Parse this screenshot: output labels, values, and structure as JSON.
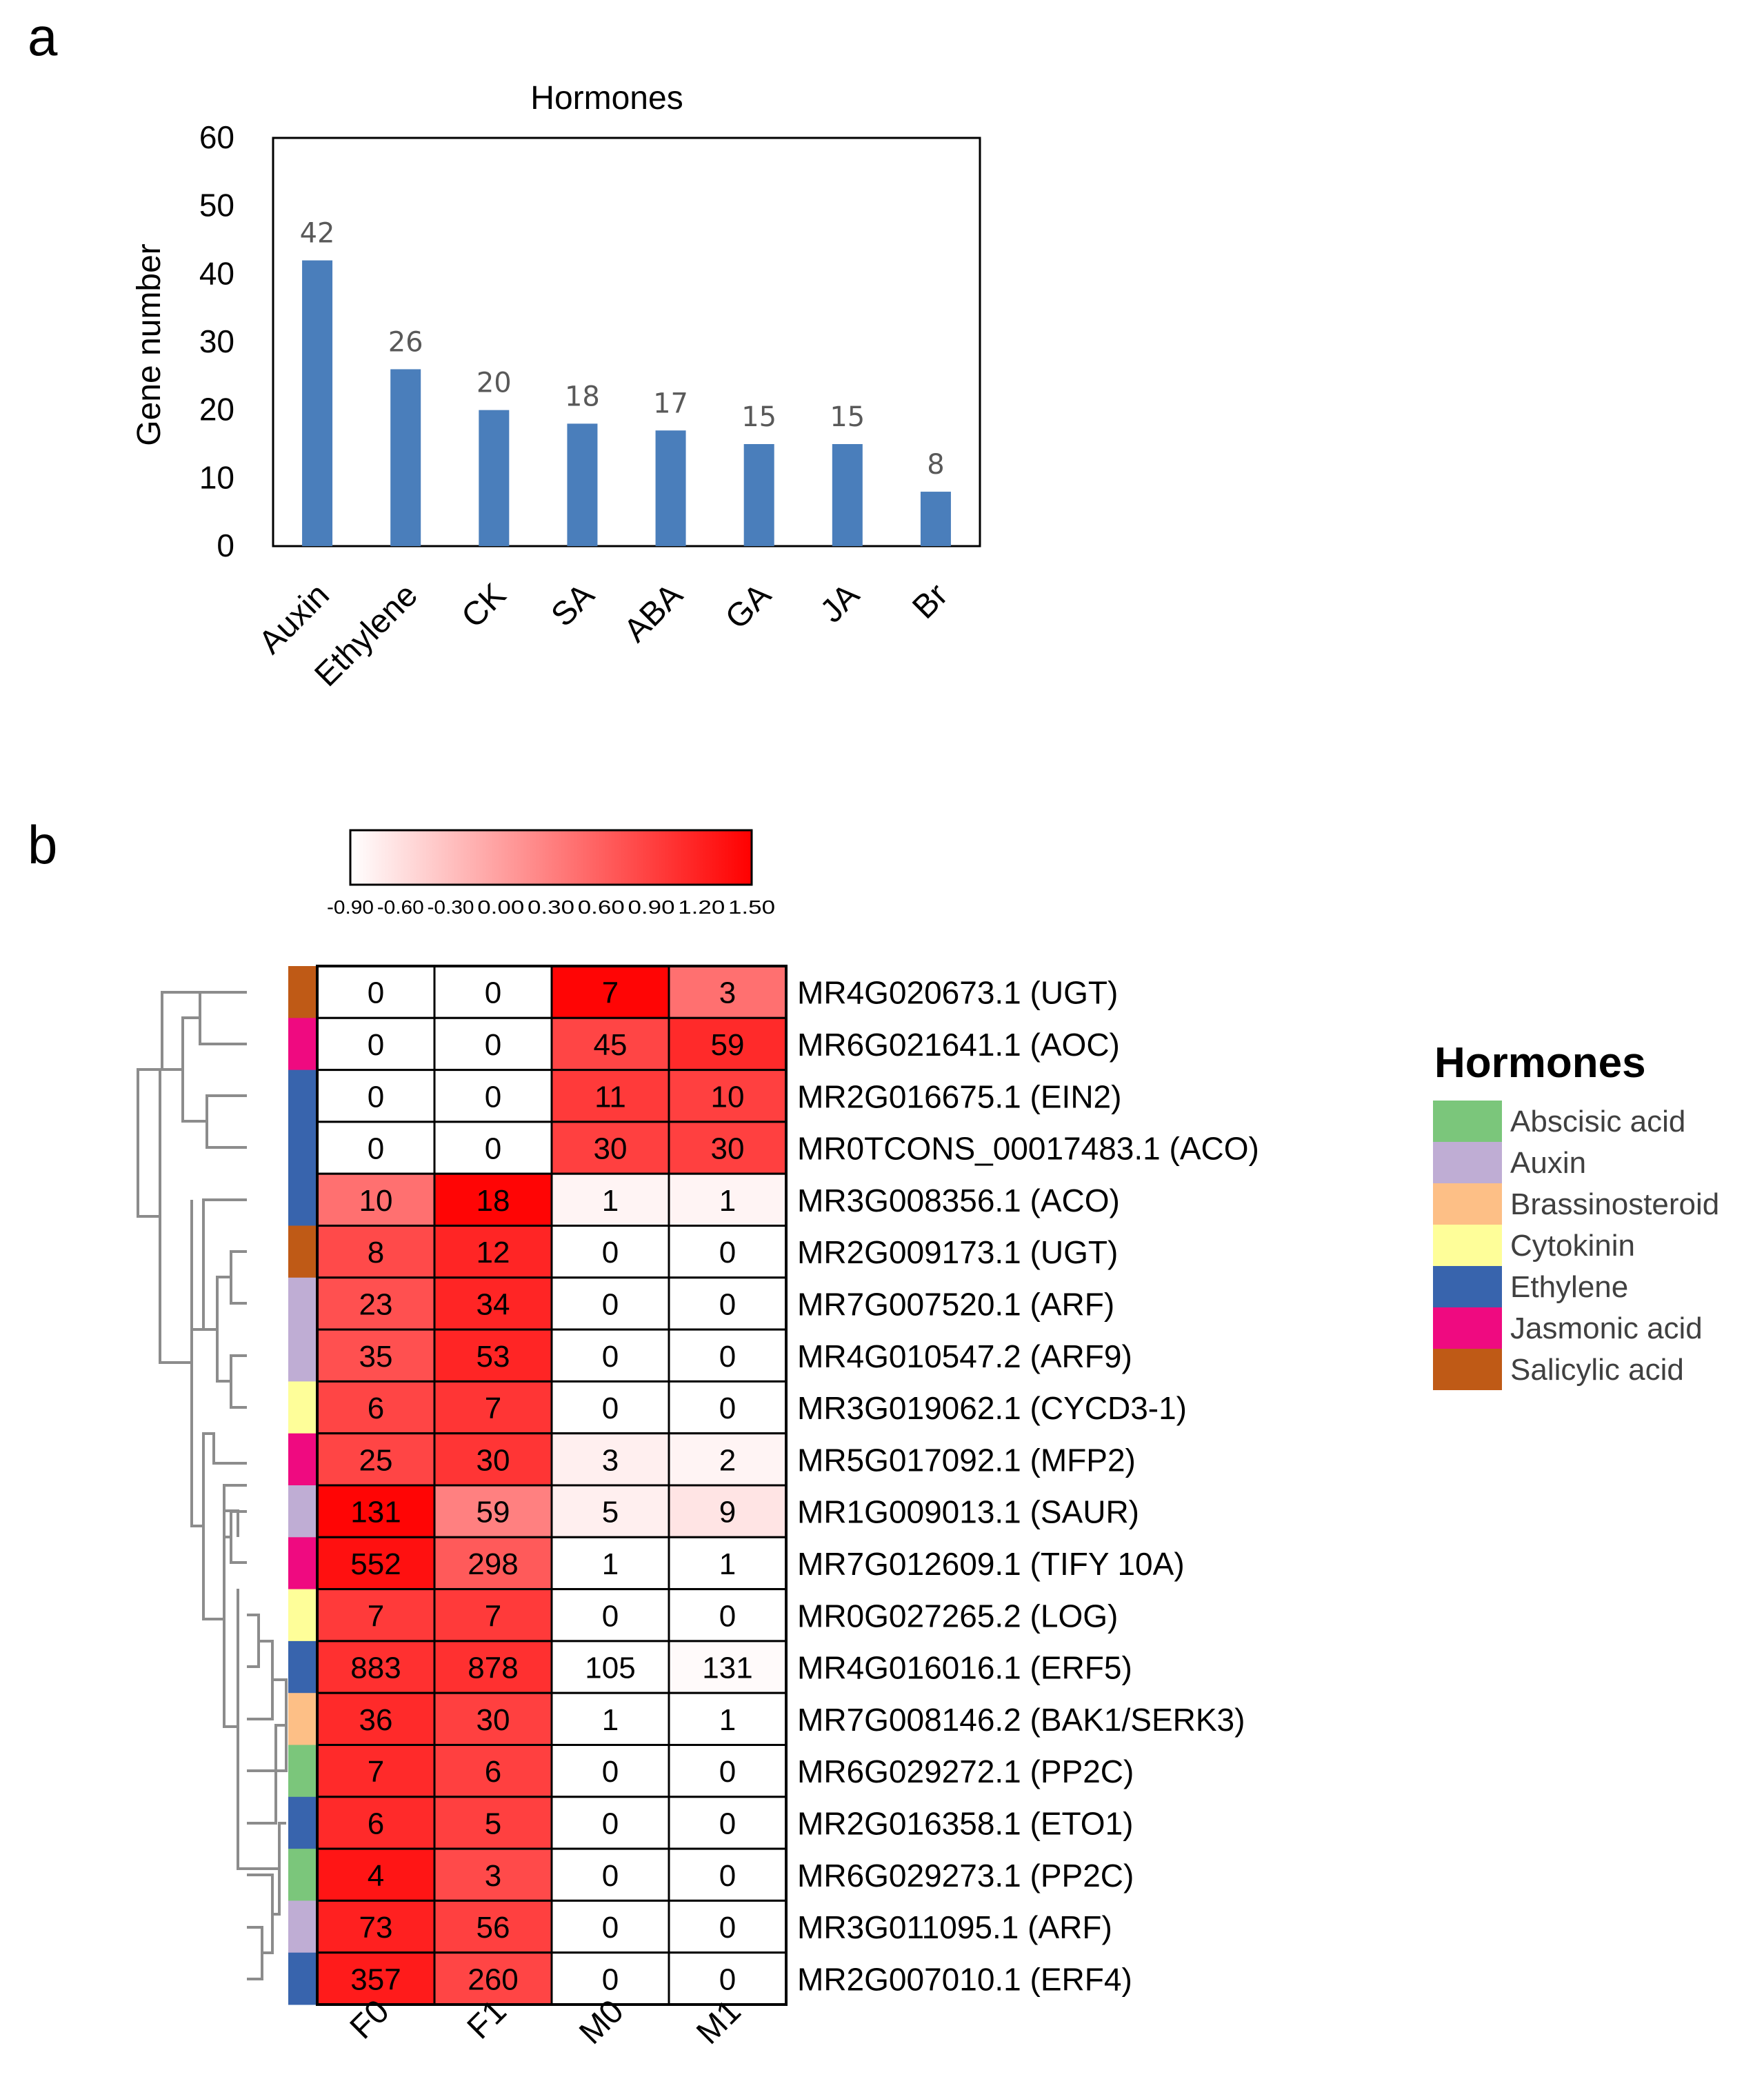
{
  "panels": {
    "a": "a",
    "b": "b"
  },
  "chart_data": [
    {
      "type": "bar",
      "title": "Hormones",
      "xlabel": "",
      "ylabel": "Gene number",
      "ylim": [
        0,
        60
      ],
      "yticks": [
        0,
        10,
        20,
        30,
        40,
        50,
        60
      ],
      "categories": [
        "Auxin",
        "Ethylene",
        "CK",
        "SA",
        "ABA",
        "GA",
        "JA",
        "Br"
      ],
      "values": [
        42,
        26,
        20,
        18,
        17,
        15,
        15,
        8
      ],
      "bar_color": "#4a7ebb",
      "grid": false
    },
    {
      "type": "heatmap",
      "columns": [
        "F0",
        "F1",
        "M0",
        "M1"
      ],
      "colorbar": {
        "min": -0.9,
        "max": 1.5,
        "ticks": [
          "-0.90",
          "-0.60",
          "-0.30",
          "0.00",
          "0.30",
          "0.60",
          "0.90",
          "1.20",
          "1.50"
        ],
        "low_color": "#ffffff",
        "high_color": "#ff0000"
      },
      "rows": [
        {
          "gene": "MR4G020673.1 (UGT)",
          "hormone": "Salicylic acid",
          "values": [
            "0",
            "0",
            "7",
            "3"
          ],
          "scaled": [
            -0.9,
            -0.9,
            1.45,
            0.45
          ]
        },
        {
          "gene": "MR6G021641.1 (AOC)",
          "hormone": "Jasmonic acid",
          "values": [
            "0",
            "0",
            "45",
            "59"
          ],
          "scaled": [
            -0.9,
            -0.9,
            0.85,
            1.1
          ]
        },
        {
          "gene": "MR2G016675.1 (EIN2)",
          "hormone": "Ethylene",
          "values": [
            "0",
            "0",
            "11",
            "10"
          ],
          "scaled": [
            -0.9,
            -0.9,
            0.95,
            0.9
          ]
        },
        {
          "gene": "MR0TCONS_00017483.1 (ACO)",
          "hormone": "Ethylene",
          "values": [
            "0",
            "0",
            "30",
            "30"
          ],
          "scaled": [
            -0.9,
            -0.9,
            0.9,
            0.9
          ]
        },
        {
          "gene": "MR3G008356.1 (ACO)",
          "hormone": "Ethylene",
          "values": [
            "10",
            "18",
            "1",
            "1"
          ],
          "scaled": [
            0.45,
            1.45,
            -0.8,
            -0.8
          ]
        },
        {
          "gene": "MR2G009173.1 (UGT)",
          "hormone": "Salicylic acid",
          "values": [
            "8",
            "12",
            "0",
            "0"
          ],
          "scaled": [
            0.8,
            1.15,
            -0.9,
            -0.9
          ]
        },
        {
          "gene": "MR7G007520.1 (ARF)",
          "hormone": "Auxin",
          "values": [
            "23",
            "34",
            "0",
            "0"
          ],
          "scaled": [
            0.75,
            1.15,
            -0.9,
            -0.9
          ]
        },
        {
          "gene": "MR4G010547.2 (ARF9)",
          "hormone": "Auxin",
          "values": [
            "35",
            "53",
            "0",
            "0"
          ],
          "scaled": [
            0.75,
            1.15,
            -0.9,
            -0.9
          ]
        },
        {
          "gene": "MR3G019062.1 (CYCD3-1)",
          "hormone": "Cytokinin",
          "values": [
            "6",
            "7",
            "0",
            "0"
          ],
          "scaled": [
            0.85,
            1.0,
            -0.9,
            -0.9
          ]
        },
        {
          "gene": "MR5G017092.1 (MFP2)",
          "hormone": "Jasmonic acid",
          "values": [
            "25",
            "30",
            "3",
            "2"
          ],
          "scaled": [
            0.85,
            1.0,
            -0.75,
            -0.8
          ]
        },
        {
          "gene": "MR1G009013.1 (SAUR)",
          "hormone": "Auxin",
          "values": [
            "131",
            "59",
            "5",
            "9"
          ],
          "scaled": [
            1.45,
            0.3,
            -0.75,
            -0.65
          ]
        },
        {
          "gene": "MR7G012609.1 (TIFY 10A)",
          "hormone": "Jasmonic acid",
          "values": [
            "552",
            "298",
            "1",
            "1"
          ],
          "scaled": [
            1.35,
            0.65,
            -0.9,
            -0.9
          ]
        },
        {
          "gene": "MR0G027265.2 (LOG)",
          "hormone": "Cytokinin",
          "values": [
            "7",
            "7",
            "0",
            "0"
          ],
          "scaled": [
            0.95,
            0.95,
            -0.9,
            -0.9
          ]
        },
        {
          "gene": "MR4G016016.1 (ERF5)",
          "hormone": "Ethylene",
          "values": [
            "883",
            "878",
            "105",
            "131"
          ],
          "scaled": [
            1.05,
            1.05,
            -0.9,
            -0.85
          ]
        },
        {
          "gene": "MR7G008146.2 (BAK1/SERK3)",
          "hormone": "Brassinosteroid",
          "values": [
            "36",
            "30",
            "1",
            "1"
          ],
          "scaled": [
            1.1,
            0.9,
            -0.9,
            -0.9
          ]
        },
        {
          "gene": "MR6G029272.1 (PP2C)",
          "hormone": "Abscisic acid",
          "values": [
            "7",
            "6",
            "0",
            "0"
          ],
          "scaled": [
            1.1,
            0.9,
            -0.9,
            -0.9
          ]
        },
        {
          "gene": "MR2G016358.1 (ETO1)",
          "hormone": "Ethylene",
          "values": [
            "6",
            "5",
            "0",
            "0"
          ],
          "scaled": [
            1.1,
            0.9,
            -0.9,
            -0.9
          ]
        },
        {
          "gene": "MR6G029273.1 (PP2C)",
          "hormone": "Abscisic acid",
          "values": [
            "4",
            "3",
            "0",
            "0"
          ],
          "scaled": [
            1.3,
            0.8,
            -0.9,
            -0.9
          ]
        },
        {
          "gene": "MR3G011095.1 (ARF)",
          "hormone": "Auxin",
          "values": [
            "73",
            "56",
            "0",
            "0"
          ],
          "scaled": [
            1.2,
            0.9,
            -0.9,
            -0.9
          ]
        },
        {
          "gene": "MR2G007010.1 (ERF4)",
          "hormone": "Ethylene",
          "values": [
            "357",
            "260",
            "0",
            "0"
          ],
          "scaled": [
            1.25,
            0.85,
            -0.9,
            -0.9
          ]
        }
      ],
      "legend": {
        "title": "Hormones",
        "items": [
          {
            "label": "Abscisic acid",
            "color": "#7bc67b"
          },
          {
            "label": "Auxin",
            "color": "#bfadd4"
          },
          {
            "label": "Brassinosteroid",
            "color": "#fdbf86"
          },
          {
            "label": "Cytokinin",
            "color": "#fefe99"
          },
          {
            "label": "Ethylene",
            "color": "#3864ad"
          },
          {
            "label": "Jasmonic acid",
            "color": "#ef0a80"
          },
          {
            "label": "Salicylic acid",
            "color": "#bf5a16"
          }
        ]
      }
    }
  ]
}
